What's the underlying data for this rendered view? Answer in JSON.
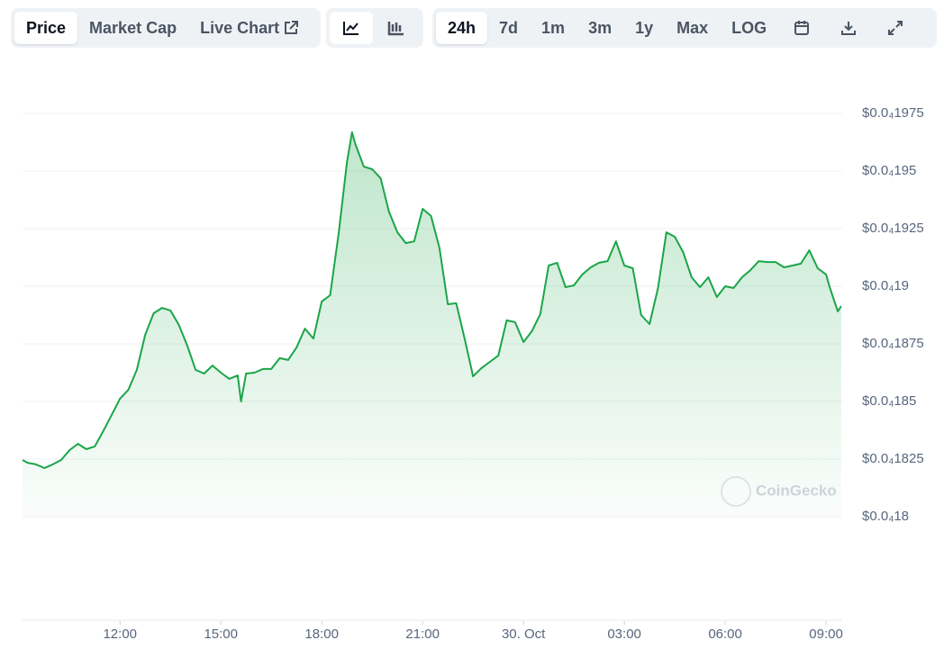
{
  "toolbar": {
    "tabs": [
      "Price",
      "Market Cap",
      "Live Chart"
    ],
    "ranges": [
      "24h",
      "7d",
      "1m",
      "3m",
      "1y",
      "Max",
      "LOG"
    ]
  },
  "watermark": "CoinGecko",
  "chart_data": {
    "type": "line",
    "color": "#1ba548",
    "grid": true,
    "x": [
      9.1,
      9.25,
      9.5,
      9.75,
      10,
      10.25,
      10.5,
      10.75,
      11,
      11.25,
      11.5,
      11.75,
      12,
      12.25,
      12.5,
      12.75,
      13,
      13.25,
      13.5,
      13.75,
      14,
      14.25,
      14.5,
      14.75,
      15,
      15.25,
      15.5,
      15.6,
      15.75,
      16,
      16.25,
      16.5,
      16.75,
      17,
      17.25,
      17.5,
      17.75,
      18,
      18.25,
      18.5,
      18.75,
      18.9,
      19,
      19.25,
      19.5,
      19.75,
      20,
      20.25,
      20.5,
      20.75,
      21,
      21.25,
      21.5,
      21.75,
      22,
      22.25,
      22.5,
      22.75,
      23,
      23.25,
      23.5,
      23.75,
      24,
      24.25,
      24.5,
      24.75,
      25,
      25.25,
      25.5,
      25.75,
      26,
      26.25,
      26.5,
      26.75,
      27,
      27.25,
      27.5,
      27.75,
      28,
      28.25,
      28.5,
      28.75,
      29,
      29.25,
      29.5,
      29.75,
      30,
      30.25,
      30.5,
      30.75,
      31,
      31.25,
      31.5,
      31.75,
      32,
      32.25,
      32.5,
      32.75,
      33,
      33.1,
      33.25,
      33.35,
      33.45
    ],
    "values": [
      1.8246e-05,
      1.8234e-05,
      1.8227e-05,
      1.8211e-05,
      1.8227e-05,
      1.8246e-05,
      1.8289e-05,
      1.8316e-05,
      1.8293e-05,
      1.8305e-05,
      1.8371e-05,
      1.8441e-05,
      1.8512e-05,
      1.8551e-05,
      1.8637e-05,
      1.8789e-05,
      1.8883e-05,
      1.8906e-05,
      1.8895e-05,
      1.8832e-05,
      1.8742e-05,
      1.8637e-05,
      1.8621e-05,
      1.8656e-05,
      1.8625e-05,
      1.8598e-05,
      1.8613e-05,
      1.85e-05,
      1.8621e-05,
      1.8625e-05,
      1.8641e-05,
      1.8641e-05,
      1.8688e-05,
      1.868e-05,
      1.8734e-05,
      1.8816e-05,
      1.8773e-05,
      1.8934e-05,
      1.8961e-05,
      1.9227e-05,
      1.9539e-05,
      1.9668e-05,
      1.9617e-05,
      1.9519e-05,
      1.9508e-05,
      1.9469e-05,
      1.9324e-05,
      1.9234e-05,
      1.9187e-05,
      1.9195e-05,
      1.9336e-05,
      1.9305e-05,
      1.9168e-05,
      1.8922e-05,
      1.8926e-05,
      1.8773e-05,
      1.8609e-05,
      1.8645e-05,
      1.8672e-05,
      1.8699e-05,
      1.8852e-05,
      1.8844e-05,
      1.8758e-05,
      1.8805e-05,
      1.8879e-05,
      1.909e-05,
      1.9102e-05,
      1.8996e-05,
      1.9004e-05,
      1.9051e-05,
      1.9082e-05,
      1.9102e-05,
      1.9109e-05,
      1.9195e-05,
      1.909e-05,
      1.9078e-05,
      1.8875e-05,
      1.8836e-05,
      1.8992e-05,
      1.9234e-05,
      1.9215e-05,
      1.9148e-05,
      1.9039e-05,
      1.8996e-05,
      1.9039e-05,
      1.8953e-05,
      1.9e-05,
      1.8992e-05,
      1.9039e-05,
      1.907e-05,
      1.9109e-05,
      1.9105e-05,
      1.9105e-05,
      1.9082e-05,
      1.909e-05,
      1.9098e-05,
      1.9156e-05,
      1.9078e-05,
      1.9051e-05,
      1.9e-05,
      1.8934e-05,
      1.8891e-05,
      1.8914e-05
    ],
    "xlim": [
      9.1,
      33.48
    ],
    "xticks": [
      {
        "value": 12,
        "label": "12:00"
      },
      {
        "value": 15,
        "label": "15:00"
      },
      {
        "value": 18,
        "label": "18:00"
      },
      {
        "value": 21,
        "label": "21:00"
      },
      {
        "value": 24,
        "label": "30. Oct"
      },
      {
        "value": 27,
        "label": "03:00"
      },
      {
        "value": 30,
        "label": "06:00"
      },
      {
        "value": 33,
        "label": "09:00"
      }
    ],
    "ylim": [
      1.8e-05,
      1.975e-05
    ],
    "yticks": [
      {
        "value": 1.8e-05,
        "label": "$0.0₄18"
      },
      {
        "value": 1.825e-05,
        "label": "$0.0₄1825"
      },
      {
        "value": 1.85e-05,
        "label": "$0.0₄185"
      },
      {
        "value": 1.875e-05,
        "label": "$0.0₄1875"
      },
      {
        "value": 1.9e-05,
        "label": "$0.0₄19"
      },
      {
        "value": 1.925e-05,
        "label": "$0.0₄1925"
      },
      {
        "value": 1.95e-05,
        "label": "$0.0₄195"
      },
      {
        "value": 1.975e-05,
        "label": "$0.0₄1975"
      }
    ]
  }
}
